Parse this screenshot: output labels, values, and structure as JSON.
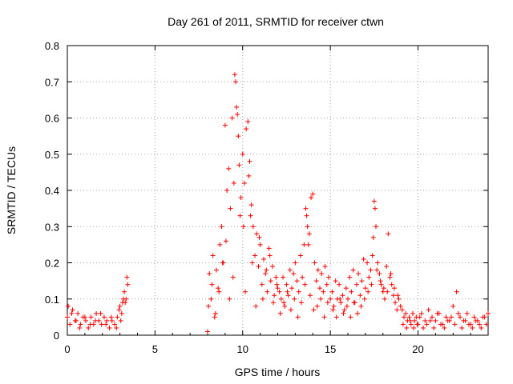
{
  "chart_data": {
    "type": "scatter",
    "title": "Day 261 of 2011, SRMTID for receiver ctwn",
    "xlabel": "GPS time / hours",
    "ylabel": "SRMTID / TECUs",
    "xlim": [
      0,
      24
    ],
    "ylim": [
      0,
      0.8
    ],
    "xticks": [
      0,
      5,
      10,
      15,
      20
    ],
    "xtick_labels": [
      "0",
      "5",
      "10",
      "15",
      "20"
    ],
    "yticks": [
      0,
      0.1,
      0.2,
      0.3,
      0.4,
      0.5,
      0.6,
      0.7,
      0.8
    ],
    "ytick_labels": [
      "0",
      "0.1",
      "0.2",
      "0.3",
      "0.4",
      "0.5",
      "0.6",
      "0.7",
      "0.8"
    ],
    "grid": true,
    "marker": "+",
    "color": "#ff0000",
    "series": [
      {
        "name": "SRMTID",
        "x": [
          0.0,
          0.15,
          0.3,
          0.45,
          0.6,
          0.75,
          0.9,
          1.05,
          1.2,
          1.35,
          1.5,
          1.65,
          1.8,
          1.95,
          2.1,
          2.25,
          2.4,
          2.55,
          2.7,
          2.85,
          3.0,
          3.1,
          3.2,
          3.3,
          3.4,
          3.45,
          0.05,
          0.25,
          0.5,
          0.7,
          1.0,
          1.3,
          1.6,
          1.9,
          2.2,
          2.5,
          2.8,
          2.95,
          3.05,
          3.15,
          3.25,
          3.35,
          8.0,
          8.1,
          8.2,
          8.3,
          8.4,
          8.5,
          8.6,
          8.7,
          8.8,
          8.9,
          9.0,
          9.1,
          9.2,
          9.3,
          9.4,
          9.5,
          9.55,
          9.6,
          9.65,
          9.7,
          9.75,
          9.8,
          9.9,
          10.0,
          10.05,
          10.1,
          10.2,
          10.3,
          10.35,
          10.4,
          10.45,
          10.5,
          10.6,
          10.7,
          10.8,
          10.9,
          11.0,
          11.1,
          11.2,
          11.3,
          11.4,
          11.5,
          11.6,
          11.7,
          11.8,
          11.9,
          12.0,
          8.05,
          8.25,
          8.45,
          8.65,
          8.85,
          9.05,
          9.25,
          9.45,
          9.85,
          10.15,
          10.55,
          10.75,
          10.95,
          11.15,
          11.35,
          11.55,
          11.75,
          11.95,
          12.1,
          12.2,
          12.3,
          12.4,
          12.5,
          12.6,
          12.7,
          12.8,
          12.9,
          13.0,
          13.1,
          13.2,
          13.3,
          13.4,
          13.5,
          13.6,
          13.65,
          13.7,
          13.75,
          13.8,
          13.9,
          14.0,
          14.1,
          14.2,
          14.3,
          14.4,
          14.5,
          14.6,
          14.7,
          14.8,
          14.9,
          15.0,
          12.15,
          12.35,
          12.55,
          12.75,
          12.95,
          13.15,
          13.35,
          13.55,
          13.85,
          14.05,
          14.25,
          14.45,
          14.65,
          14.85,
          15.1,
          15.2,
          15.3,
          15.4,
          15.5,
          15.6,
          15.7,
          15.8,
          15.9,
          16.0,
          16.1,
          16.2,
          16.3,
          16.4,
          16.5,
          16.6,
          16.7,
          16.8,
          16.9,
          17.0,
          17.1,
          17.2,
          17.3,
          17.4,
          17.5,
          17.55,
          17.6,
          17.7,
          17.8,
          17.9,
          18.0,
          18.1,
          18.2,
          18.3,
          18.4,
          18.5,
          18.6,
          18.7,
          18.8,
          18.9,
          19.0,
          15.15,
          15.35,
          15.55,
          15.75,
          15.95,
          16.15,
          16.35,
          16.55,
          16.75,
          16.95,
          17.15,
          17.35,
          17.45,
          17.65,
          17.85,
          18.05,
          18.25,
          18.45,
          18.65,
          18.85,
          19.1,
          19.2,
          19.3,
          19.4,
          19.5,
          19.6,
          19.7,
          19.8,
          19.9,
          20.0,
          20.2,
          20.4,
          20.6,
          20.8,
          21.0,
          21.2,
          21.4,
          21.6,
          21.8,
          22.0,
          22.2,
          22.4,
          22.6,
          22.8,
          23.0,
          23.2,
          23.4,
          23.6,
          23.8,
          24.0,
          19.15,
          19.35,
          19.55,
          19.75,
          19.95,
          20.1,
          20.3,
          20.5,
          20.7,
          20.9,
          21.1,
          21.3,
          21.5,
          21.7,
          21.9,
          22.1,
          22.3,
          22.5,
          22.7,
          22.9,
          23.1,
          23.3,
          23.5,
          23.7,
          23.9
        ],
        "y": [
          0.05,
          0.03,
          0.07,
          0.04,
          0.06,
          0.03,
          0.05,
          0.04,
          0.02,
          0.05,
          0.03,
          0.06,
          0.04,
          0.03,
          0.05,
          0.04,
          0.02,
          0.04,
          0.03,
          0.05,
          0.08,
          0.06,
          0.1,
          0.09,
          0.16,
          0.14,
          0.08,
          0.06,
          0.04,
          0.02,
          0.05,
          0.03,
          0.04,
          0.06,
          0.03,
          0.05,
          0.02,
          0.07,
          0.04,
          0.09,
          0.12,
          0.1,
          0.01,
          0.17,
          0.1,
          0.22,
          0.05,
          0.18,
          0.13,
          0.25,
          0.3,
          0.2,
          0.58,
          0.4,
          0.46,
          0.35,
          0.6,
          0.42,
          0.72,
          0.7,
          0.63,
          0.61,
          0.55,
          0.47,
          0.38,
          0.5,
          0.3,
          0.42,
          0.57,
          0.59,
          0.44,
          0.48,
          0.33,
          0.36,
          0.3,
          0.22,
          0.28,
          0.19,
          0.25,
          0.14,
          0.21,
          0.17,
          0.12,
          0.24,
          0.15,
          0.19,
          0.11,
          0.16,
          0.13,
          0.08,
          0.14,
          0.06,
          0.12,
          0.2,
          0.26,
          0.1,
          0.16,
          0.33,
          0.12,
          0.2,
          0.08,
          0.27,
          0.1,
          0.18,
          0.22,
          0.09,
          0.14,
          0.12,
          0.1,
          0.16,
          0.08,
          0.14,
          0.11,
          0.18,
          0.13,
          0.17,
          0.2,
          0.15,
          0.12,
          0.22,
          0.16,
          0.25,
          0.35,
          0.33,
          0.3,
          0.25,
          0.28,
          0.38,
          0.39,
          0.2,
          0.15,
          0.18,
          0.13,
          0.17,
          0.12,
          0.19,
          0.14,
          0.16,
          0.1,
          0.06,
          0.09,
          0.12,
          0.07,
          0.1,
          0.05,
          0.09,
          0.14,
          0.11,
          0.07,
          0.08,
          0.1,
          0.05,
          0.09,
          0.12,
          0.08,
          0.15,
          0.1,
          0.14,
          0.09,
          0.11,
          0.07,
          0.13,
          0.1,
          0.16,
          0.12,
          0.18,
          0.09,
          0.14,
          0.17,
          0.11,
          0.15,
          0.21,
          0.13,
          0.2,
          0.16,
          0.18,
          0.22,
          0.37,
          0.35,
          0.3,
          0.2,
          0.17,
          0.14,
          0.12,
          0.1,
          0.19,
          0.28,
          0.16,
          0.14,
          0.11,
          0.09,
          0.07,
          0.1,
          0.08,
          0.07,
          0.05,
          0.1,
          0.06,
          0.08,
          0.05,
          0.09,
          0.06,
          0.08,
          0.1,
          0.12,
          0.14,
          0.27,
          0.18,
          0.15,
          0.13,
          0.12,
          0.17,
          0.13,
          0.11,
          0.07,
          0.05,
          0.06,
          0.04,
          0.05,
          0.03,
          0.06,
          0.04,
          0.05,
          0.03,
          0.06,
          0.04,
          0.07,
          0.05,
          0.04,
          0.06,
          0.03,
          0.05,
          0.04,
          0.08,
          0.12,
          0.05,
          0.04,
          0.06,
          0.03,
          0.05,
          0.04,
          0.02,
          0.05,
          0.06,
          0.03,
          0.02,
          0.04,
          0.02,
          0.03,
          0.05,
          0.02,
          0.03,
          0.04,
          0.02,
          0.06,
          0.03,
          0.02,
          0.04,
          0.05,
          0.03,
          0.06,
          0.02,
          0.04,
          0.03,
          0.02,
          0.04,
          0.03,
          0.05,
          0.03
        ]
      }
    ]
  }
}
